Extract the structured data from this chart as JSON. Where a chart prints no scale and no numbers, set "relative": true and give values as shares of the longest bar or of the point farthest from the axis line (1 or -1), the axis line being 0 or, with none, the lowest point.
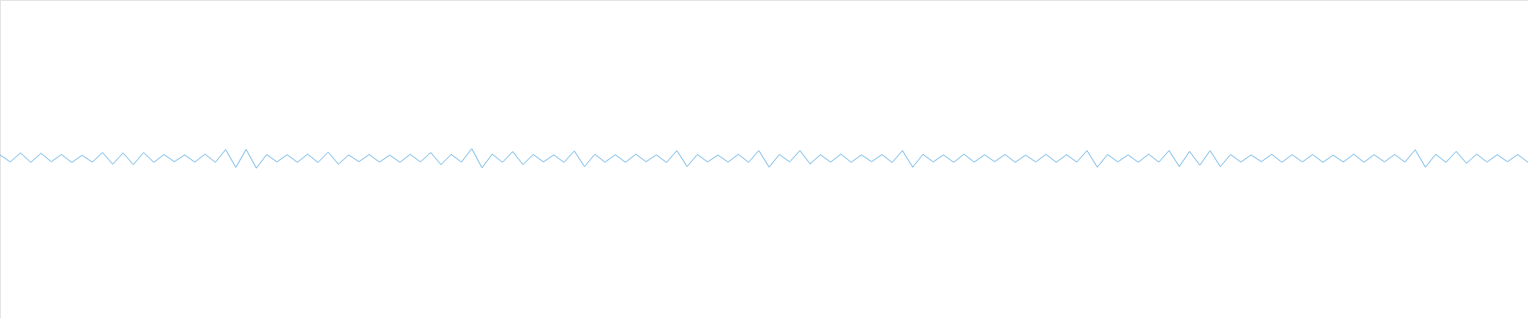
{
  "chart_data": {
    "type": "line",
    "relative": true,
    "categories": [
      null,
      null,
      null,
      null,
      null,
      null,
      null,
      null,
      null,
      null,
      null,
      null,
      null,
      null,
      null,
      null,
      null,
      null,
      null,
      null,
      null,
      null,
      null,
      null,
      null,
      null,
      null,
      null,
      null,
      null,
      null,
      null,
      null,
      null,
      null,
      null,
      null,
      null,
      null,
      null,
      null,
      null,
      null,
      null,
      null,
      null,
      null,
      null,
      null,
      null,
      null,
      null,
      null,
      null,
      null,
      null,
      null,
      null,
      null,
      null,
      null,
      null,
      null,
      null,
      null,
      null,
      null,
      null,
      null,
      null,
      null,
      null,
      null,
      null,
      null,
      null,
      null,
      null,
      null,
      null,
      null,
      null,
      null,
      null,
      null,
      null,
      null,
      null,
      null,
      null,
      null,
      null,
      null,
      null,
      null,
      null,
      null,
      null,
      null,
      null,
      null,
      null,
      null,
      null,
      null,
      null,
      null,
      null,
      null,
      null,
      null,
      null,
      null,
      null,
      null,
      null,
      null,
      null,
      null,
      null,
      null,
      null,
      null,
      null,
      null,
      null,
      null,
      null,
      null,
      null,
      null,
      null,
      null,
      null,
      null,
      null,
      null,
      null,
      null,
      null,
      null,
      null,
      null,
      null,
      null,
      null,
      null,
      null,
      null,
      null
    ],
    "series": [
      {
        "color": "#5dade2",
        "values": [
          0.68,
          0.32,
          0.78,
          0.3,
          0.76,
          0.33,
          0.7,
          0.29,
          0.66,
          0.31,
          0.8,
          0.2,
          0.78,
          0.18,
          0.8,
          0.3,
          0.7,
          0.33,
          0.68,
          0.31,
          0.72,
          0.3,
          0.95,
          0.04,
          0.96,
          0.0,
          0.7,
          0.32,
          0.69,
          0.3,
          0.72,
          0.29,
          0.82,
          0.2,
          0.68,
          0.33,
          0.7,
          0.31,
          0.67,
          0.3,
          0.71,
          0.32,
          0.8,
          0.18,
          0.7,
          0.31,
          1.0,
          0.02,
          0.72,
          0.3,
          0.85,
          0.18,
          0.7,
          0.32,
          0.68,
          0.3,
          0.88,
          0.08,
          0.71,
          0.31,
          0.69,
          0.3,
          0.72,
          0.33,
          0.68,
          0.29,
          0.9,
          0.08,
          0.7,
          0.32,
          0.67,
          0.31,
          0.71,
          0.3,
          0.9,
          0.05,
          0.7,
          0.32,
          0.9,
          0.22,
          0.69,
          0.31,
          0.72,
          0.3,
          0.68,
          0.33,
          0.7,
          0.29,
          0.9,
          0.05,
          0.71,
          0.32,
          0.68,
          0.3,
          0.72,
          0.31,
          0.69,
          0.33,
          0.7,
          0.3,
          0.67,
          0.32,
          0.71,
          0.3,
          0.69,
          0.31,
          0.9,
          0.05,
          0.7,
          0.32,
          0.68,
          0.3,
          0.72,
          0.31,
          0.9,
          0.08,
          0.86,
          0.15,
          0.9,
          0.08,
          0.7,
          0.31,
          0.68,
          0.33,
          0.71,
          0.3,
          0.69,
          0.32,
          0.7,
          0.3,
          0.67,
          0.31,
          0.72,
          0.3,
          0.69,
          0.32,
          0.7,
          0.31,
          0.94,
          0.05,
          0.71,
          0.3,
          0.86,
          0.25,
          0.72,
          0.31,
          0.69,
          0.33,
          0.7,
          0.3
        ]
      }
    ]
  }
}
